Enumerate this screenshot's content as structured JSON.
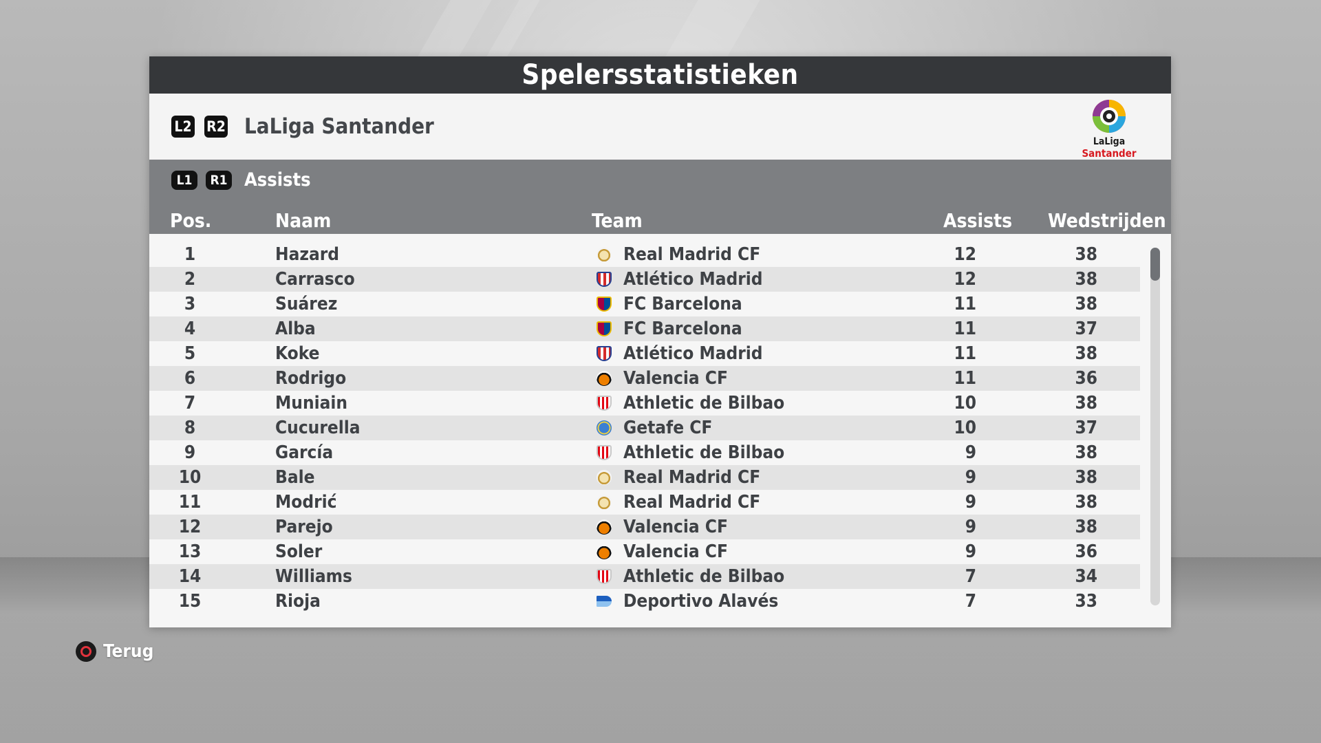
{
  "header": {
    "title": "Spelersstatistieken"
  },
  "league": {
    "prev_button": "L2",
    "next_button": "R2",
    "name": "LaLiga Santander",
    "logo_text_1": "LaLiga",
    "logo_text_2": "Santander"
  },
  "stat": {
    "prev_button": "L1",
    "next_button": "R1",
    "name": "Assists"
  },
  "columns": {
    "pos": "Pos.",
    "name": "Naam",
    "team": "Team",
    "assists": "Assists",
    "matches": "Wedstrijden"
  },
  "rows": [
    {
      "pos": "1",
      "name": "Hazard",
      "team": "Real Madrid CF",
      "crest": "real-madrid-crest-icon",
      "assists": "12",
      "matches": "38"
    },
    {
      "pos": "2",
      "name": "Carrasco",
      "team": "Atlético Madrid",
      "crest": "atletico-madrid-crest-icon",
      "assists": "12",
      "matches": "38"
    },
    {
      "pos": "3",
      "name": "Suárez",
      "team": "FC Barcelona",
      "crest": "fc-barcelona-crest-icon",
      "assists": "11",
      "matches": "38"
    },
    {
      "pos": "4",
      "name": "Alba",
      "team": "FC Barcelona",
      "crest": "fc-barcelona-crest-icon",
      "assists": "11",
      "matches": "37"
    },
    {
      "pos": "5",
      "name": "Koke",
      "team": "Atlético Madrid",
      "crest": "atletico-madrid-crest-icon",
      "assists": "11",
      "matches": "38"
    },
    {
      "pos": "6",
      "name": "Rodrigo",
      "team": "Valencia CF",
      "crest": "valencia-crest-icon",
      "assists": "11",
      "matches": "36"
    },
    {
      "pos": "7",
      "name": "Muniain",
      "team": "Athletic de Bilbao",
      "crest": "athletic-bilbao-crest-icon",
      "assists": "10",
      "matches": "38"
    },
    {
      "pos": "8",
      "name": "Cucurella",
      "team": "Getafe CF",
      "crest": "getafe-crest-icon",
      "assists": "10",
      "matches": "37"
    },
    {
      "pos": "9",
      "name": "García",
      "team": "Athletic de Bilbao",
      "crest": "athletic-bilbao-crest-icon",
      "assists": "9",
      "matches": "38"
    },
    {
      "pos": "10",
      "name": "Bale",
      "team": "Real Madrid CF",
      "crest": "real-madrid-crest-icon",
      "assists": "9",
      "matches": "38"
    },
    {
      "pos": "11",
      "name": "Modrić",
      "team": "Real Madrid CF",
      "crest": "real-madrid-crest-icon",
      "assists": "9",
      "matches": "38"
    },
    {
      "pos": "12",
      "name": "Parejo",
      "team": "Valencia CF",
      "crest": "valencia-crest-icon",
      "assists": "9",
      "matches": "38"
    },
    {
      "pos": "13",
      "name": "Soler",
      "team": "Valencia CF",
      "crest": "valencia-crest-icon",
      "assists": "9",
      "matches": "36"
    },
    {
      "pos": "14",
      "name": "Williams",
      "team": "Athletic de Bilbao",
      "crest": "athletic-bilbao-crest-icon",
      "assists": "7",
      "matches": "34"
    },
    {
      "pos": "15",
      "name": "Rioja",
      "team": "Deportivo Alavés",
      "crest": "alaves-crest-icon",
      "assists": "7",
      "matches": "33"
    }
  ],
  "footer": {
    "back_label": "Terug",
    "back_icon": "circle-button-icon"
  },
  "colors": {
    "title_bar": "#35373a",
    "stat_bar": "#7d7f82",
    "row_alt": "#e3e3e3",
    "text": "#3e4145"
  }
}
